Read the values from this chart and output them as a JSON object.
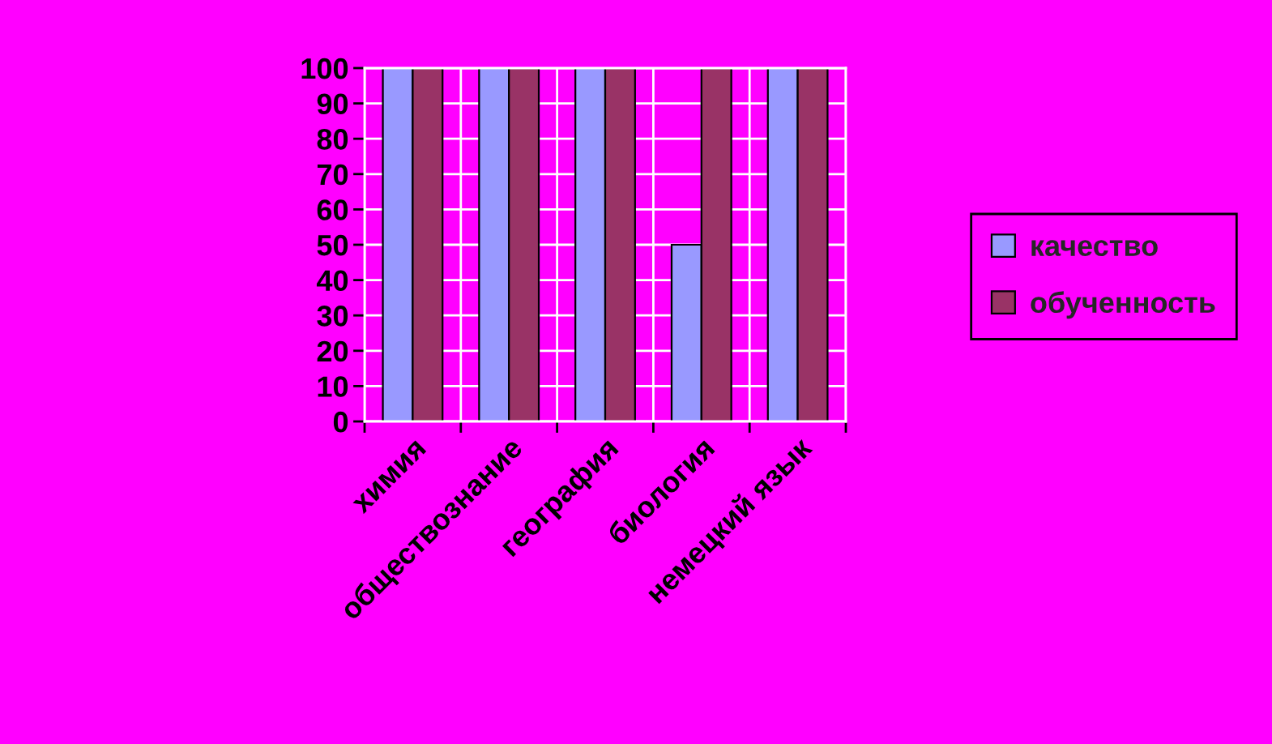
{
  "chart_data": {
    "type": "bar",
    "categories": [
      "химия",
      "обществознание",
      "география",
      "биология",
      "немецкий язык"
    ],
    "series": [
      {
        "name": "качество",
        "color": "#9999ff",
        "values": [
          100,
          100,
          100,
          50,
          100
        ]
      },
      {
        "name": "обученность",
        "color": "#993366",
        "values": [
          100,
          100,
          100,
          100,
          100
        ]
      }
    ],
    "ylim": [
      0,
      100
    ],
    "yticks": [
      0,
      10,
      20,
      30,
      40,
      50,
      60,
      70,
      80,
      90,
      100
    ],
    "grid": true,
    "legend": "right"
  }
}
